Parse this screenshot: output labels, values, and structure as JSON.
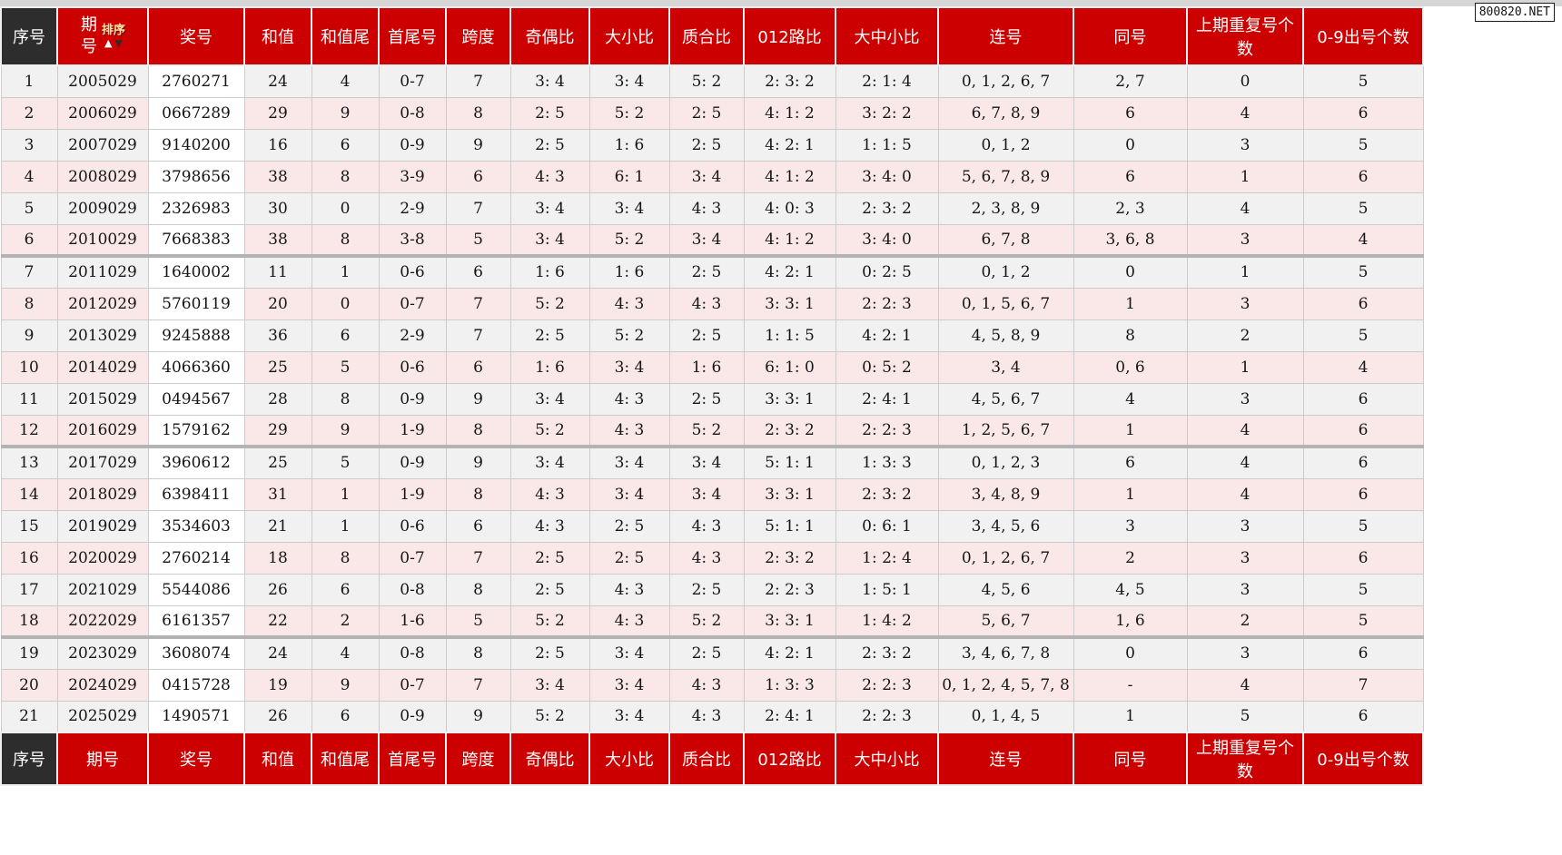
{
  "page": {
    "watermark": "800820.NET"
  },
  "table": {
    "sort": {
      "label": "排序",
      "up_icon": "▲",
      "down_icon": "▼"
    },
    "columns": [
      {
        "key": "serial",
        "label": "序号"
      },
      {
        "key": "issue",
        "label": "期号"
      },
      {
        "key": "prize",
        "label": "奖号"
      },
      {
        "key": "sum",
        "label": "和值"
      },
      {
        "key": "sum-tail",
        "label": "和值尾"
      },
      {
        "key": "head-tail",
        "label": "首尾号"
      },
      {
        "key": "span",
        "label": "跨度"
      },
      {
        "key": "odd-even",
        "label": "奇偶比"
      },
      {
        "key": "big-small",
        "label": "大小比"
      },
      {
        "key": "prime-composite",
        "label": "质合比"
      },
      {
        "key": "route-012",
        "label": "012路比"
      },
      {
        "key": "big-mid-small",
        "label": "大中小比"
      },
      {
        "key": "consecutive",
        "label": "连号"
      },
      {
        "key": "same-number",
        "label": "同号"
      },
      {
        "key": "prev-repeat",
        "label": "上期重复号个数"
      },
      {
        "key": "digit-count",
        "label": "0-9出号个数"
      }
    ],
    "rows": [
      [
        "1",
        "2005029",
        "2760271",
        "24",
        "4",
        "0-7",
        "7",
        "3: 4",
        "3: 4",
        "5: 2",
        "2: 3: 2",
        "2: 1: 4",
        "0, 1, 2, 6, 7",
        "2, 7",
        "0",
        "5"
      ],
      [
        "2",
        "2006029",
        "0667289",
        "29",
        "9",
        "0-8",
        "8",
        "2: 5",
        "5: 2",
        "2: 5",
        "4: 1: 2",
        "3: 2: 2",
        "6, 7, 8, 9",
        "6",
        "4",
        "6"
      ],
      [
        "3",
        "2007029",
        "9140200",
        "16",
        "6",
        "0-9",
        "9",
        "2: 5",
        "1: 6",
        "2: 5",
        "4: 2: 1",
        "1: 1: 5",
        "0, 1, 2",
        "0",
        "3",
        "5"
      ],
      [
        "4",
        "2008029",
        "3798656",
        "38",
        "8",
        "3-9",
        "6",
        "4: 3",
        "6: 1",
        "3: 4",
        "4: 1: 2",
        "3: 4: 0",
        "5, 6, 7, 8, 9",
        "6",
        "1",
        "6"
      ],
      [
        "5",
        "2009029",
        "2326983",
        "30",
        "0",
        "2-9",
        "7",
        "3: 4",
        "3: 4",
        "4: 3",
        "4: 0: 3",
        "2: 3: 2",
        "2, 3, 8, 9",
        "2, 3",
        "4",
        "5"
      ],
      [
        "6",
        "2010029",
        "7668383",
        "38",
        "8",
        "3-8",
        "5",
        "3: 4",
        "5: 2",
        "3: 4",
        "4: 1: 2",
        "3: 4: 0",
        "6, 7, 8",
        "3, 6, 8",
        "3",
        "4"
      ],
      [
        "7",
        "2011029",
        "1640002",
        "11",
        "1",
        "0-6",
        "6",
        "1: 6",
        "1: 6",
        "2: 5",
        "4: 2: 1",
        "0: 2: 5",
        "0, 1, 2",
        "0",
        "1",
        "5"
      ],
      [
        "8",
        "2012029",
        "5760119",
        "20",
        "0",
        "0-7",
        "7",
        "5: 2",
        "4: 3",
        "4: 3",
        "3: 3: 1",
        "2: 2: 3",
        "0, 1, 5, 6, 7",
        "1",
        "3",
        "6"
      ],
      [
        "9",
        "2013029",
        "9245888",
        "36",
        "6",
        "2-9",
        "7",
        "2: 5",
        "5: 2",
        "2: 5",
        "1: 1: 5",
        "4: 2: 1",
        "4, 5, 8, 9",
        "8",
        "2",
        "5"
      ],
      [
        "10",
        "2014029",
        "4066360",
        "25",
        "5",
        "0-6",
        "6",
        "1: 6",
        "3: 4",
        "1: 6",
        "6: 1: 0",
        "0: 5: 2",
        "3, 4",
        "0, 6",
        "1",
        "4"
      ],
      [
        "11",
        "2015029",
        "0494567",
        "28",
        "8",
        "0-9",
        "9",
        "3: 4",
        "4: 3",
        "2: 5",
        "3: 3: 1",
        "2: 4: 1",
        "4, 5, 6, 7",
        "4",
        "3",
        "6"
      ],
      [
        "12",
        "2016029",
        "1579162",
        "29",
        "9",
        "1-9",
        "8",
        "5: 2",
        "4: 3",
        "5: 2",
        "2: 3: 2",
        "2: 2: 3",
        "1, 2, 5, 6, 7",
        "1",
        "4",
        "6"
      ],
      [
        "13",
        "2017029",
        "3960612",
        "25",
        "5",
        "0-9",
        "9",
        "3: 4",
        "3: 4",
        "3: 4",
        "5: 1: 1",
        "1: 3: 3",
        "0, 1, 2, 3",
        "6",
        "4",
        "6"
      ],
      [
        "14",
        "2018029",
        "6398411",
        "31",
        "1",
        "1-9",
        "8",
        "4: 3",
        "3: 4",
        "3: 4",
        "3: 3: 1",
        "2: 3: 2",
        "3, 4, 8, 9",
        "1",
        "4",
        "6"
      ],
      [
        "15",
        "2019029",
        "3534603",
        "21",
        "1",
        "0-6",
        "6",
        "4: 3",
        "2: 5",
        "4: 3",
        "5: 1: 1",
        "0: 6: 1",
        "3, 4, 5, 6",
        "3",
        "3",
        "5"
      ],
      [
        "16",
        "2020029",
        "2760214",
        "18",
        "8",
        "0-7",
        "7",
        "2: 5",
        "2: 5",
        "4: 3",
        "2: 3: 2",
        "1: 2: 4",
        "0, 1, 2, 6, 7",
        "2",
        "3",
        "6"
      ],
      [
        "17",
        "2021029",
        "5544086",
        "26",
        "6",
        "0-8",
        "8",
        "2: 5",
        "4: 3",
        "2: 5",
        "2: 2: 3",
        "1: 5: 1",
        "4, 5, 6",
        "4, 5",
        "3",
        "5"
      ],
      [
        "18",
        "2022029",
        "6161357",
        "22",
        "2",
        "1-6",
        "5",
        "5: 2",
        "4: 3",
        "5: 2",
        "3: 3: 1",
        "1: 4: 2",
        "5, 6, 7",
        "1, 6",
        "2",
        "5"
      ],
      [
        "19",
        "2023029",
        "3608074",
        "24",
        "4",
        "0-8",
        "8",
        "2: 5",
        "3: 4",
        "2: 5",
        "4: 2: 1",
        "2: 3: 2",
        "3, 4, 6, 7, 8",
        "0",
        "3",
        "6"
      ],
      [
        "20",
        "2024029",
        "0415728",
        "19",
        "9",
        "0-7",
        "7",
        "3: 4",
        "3: 4",
        "4: 3",
        "1: 3: 3",
        "2: 2: 3",
        "0, 1, 2, 4, 5, 7, 8",
        "-",
        "4",
        "7"
      ],
      [
        "21",
        "2025029",
        "1490571",
        "26",
        "6",
        "0-9",
        "9",
        "5: 2",
        "3: 4",
        "4: 3",
        "2: 4: 1",
        "2: 2: 3",
        "0, 1, 4, 5",
        "1",
        "5",
        "6"
      ]
    ]
  }
}
